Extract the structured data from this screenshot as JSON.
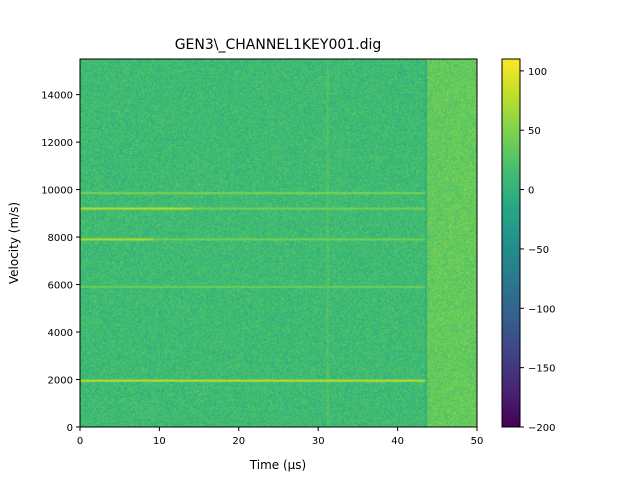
{
  "chart_data": {
    "type": "heatmap",
    "title": "GEN3\\_CHANNEL1KEY001.dig",
    "xlabel": "Time (μs)",
    "ylabel": "Velocity (m/s)",
    "xlim": [
      0,
      50
    ],
    "ylim": [
      0,
      15500
    ],
    "xticks": [
      0,
      10,
      20,
      30,
      40,
      50
    ],
    "yticks": [
      0,
      2000,
      4000,
      6000,
      8000,
      10000,
      12000,
      14000
    ],
    "xtick_labels": [
      "0",
      "10",
      "20",
      "30",
      "40",
      "50"
    ],
    "ytick_labels": [
      "0",
      "2000",
      "4000",
      "6000",
      "8000",
      "10000",
      "12000",
      "14000"
    ],
    "colorbar": {
      "colormap": "viridis",
      "range": [
        -200,
        110
      ],
      "ticks": [
        100,
        50,
        0,
        -50,
        -100,
        -150,
        -200
      ],
      "tick_labels": [
        "100",
        "50",
        "0",
        "−50",
        "−100",
        "−150",
        "−200"
      ]
    },
    "background_level": 12,
    "late_region": {
      "x_start": 43.5,
      "level": 35
    },
    "noise_amplitude": 18,
    "horizontal_bands": [
      {
        "y": 1950,
        "x_end": 43.5,
        "level": 80
      },
      {
        "y": 7900,
        "x_end": 9.2,
        "level": 75
      },
      {
        "y": 7900,
        "x_start": 9.2,
        "x_end": 43.5,
        "level": 45
      },
      {
        "y": 9200,
        "x_end": 14.2,
        "level": 78
      },
      {
        "y": 9200,
        "x_start": 14.2,
        "x_end": 43.5,
        "level": 45
      },
      {
        "y": 9850,
        "x_end": 43.5,
        "level": 48
      },
      {
        "y": 5900,
        "x_end": 43.5,
        "level": 40
      }
    ],
    "vertical_bands": [
      {
        "x": 31.2,
        "level": 35
      },
      {
        "x": 43.6,
        "level": -30
      }
    ],
    "grid": false
  },
  "colors": {
    "axes": "#000000",
    "background": "#ffffff"
  }
}
